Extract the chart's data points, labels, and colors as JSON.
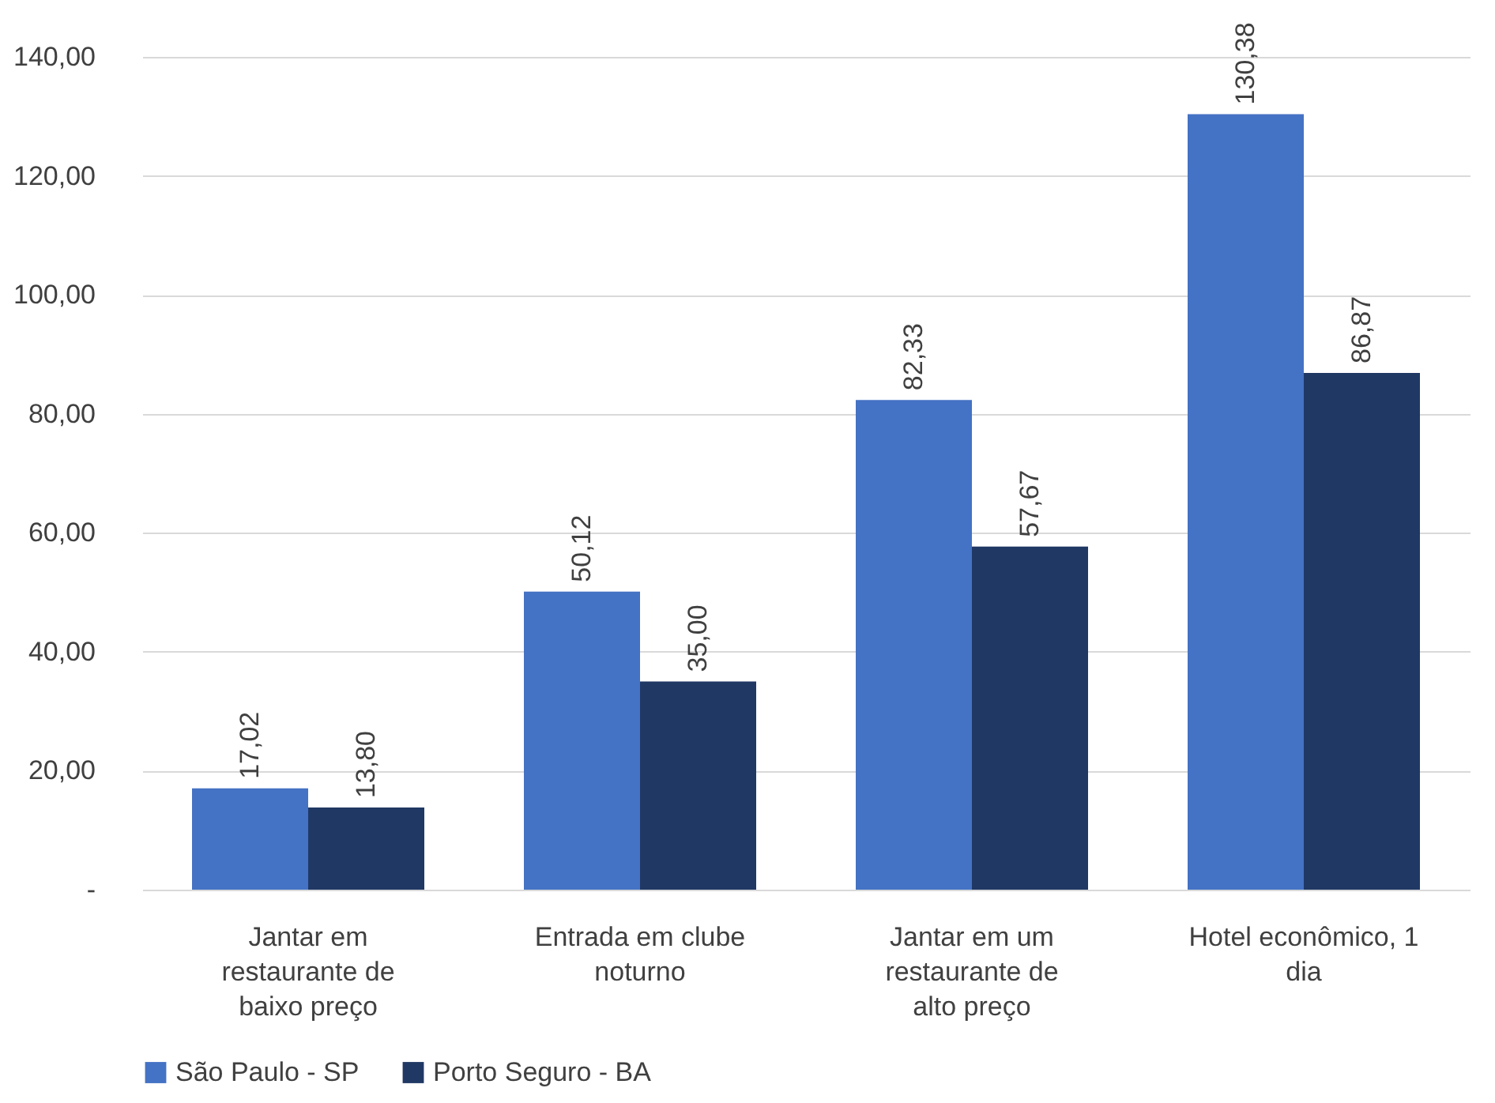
{
  "chart_data": {
    "type": "bar",
    "categories": [
      "Jantar em restaurante de baixo preço",
      "Entrada em clube noturno",
      "Jantar em um restaurante de alto preço",
      "Hotel econômico, 1 dia"
    ],
    "series": [
      {
        "name": "São Paulo - SP",
        "color": "#4472c4",
        "values": [
          17.02,
          50.12,
          82.33,
          130.38
        ],
        "value_labels": [
          "17,02",
          "50,12",
          "82,33",
          "130,38"
        ]
      },
      {
        "name": "Porto Seguro - BA",
        "color": "#203864",
        "values": [
          13.8,
          35.0,
          57.67,
          86.87
        ],
        "value_labels": [
          "13,80",
          "35,00",
          "57,67",
          "86,87"
        ]
      }
    ],
    "ylim": [
      0,
      140
    ],
    "yticks": [
      {
        "value": 0,
        "label": "-"
      },
      {
        "value": 20,
        "label": "20,00"
      },
      {
        "value": 40,
        "label": "40,00"
      },
      {
        "value": 60,
        "label": "60,00"
      },
      {
        "value": 80,
        "label": "80,00"
      },
      {
        "value": 100,
        "label": "100,00"
      },
      {
        "value": 120,
        "label": "120,00"
      },
      {
        "value": 140,
        "label": "140,00"
      }
    ],
    "grid": "y",
    "legend": "bottom"
  }
}
